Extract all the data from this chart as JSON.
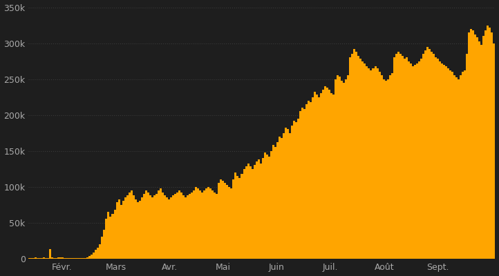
{
  "background_color": "#1e1e1e",
  "bar_color": "#FFA500",
  "text_color": "#aaaaaa",
  "grid_color": "#3a3a3a",
  "ylim": [
    0,
    350000
  ],
  "yticks": [
    0,
    50000,
    100000,
    150000,
    200000,
    250000,
    300000,
    350000
  ],
  "ytick_labels": [
    "0",
    "50k",
    "100k",
    "150k",
    "200k",
    "250k",
    "300k",
    "350k"
  ],
  "month_labels": [
    "Févr.",
    "Mars",
    "Avr.",
    "Mai",
    "Juin",
    "Juil.",
    "Août",
    "Sept."
  ],
  "values": [
    500,
    600,
    700,
    1000,
    800,
    700,
    600,
    1200,
    900,
    800,
    13000,
    1000,
    900,
    800,
    1500,
    1200,
    1000,
    900,
    800,
    700,
    600,
    500,
    400,
    300,
    400,
    500,
    600,
    700,
    1000,
    3000,
    5000,
    8000,
    12000,
    15000,
    20000,
    30000,
    40000,
    55000,
    65000,
    58000,
    62000,
    68000,
    78000,
    82000,
    75000,
    80000,
    85000,
    88000,
    92000,
    95000,
    88000,
    82000,
    78000,
    80000,
    85000,
    90000,
    95000,
    92000,
    88000,
    85000,
    88000,
    90000,
    95000,
    98000,
    92000,
    88000,
    85000,
    82000,
    85000,
    88000,
    90000,
    92000,
    95000,
    92000,
    88000,
    85000,
    88000,
    90000,
    92000,
    95000,
    100000,
    98000,
    95000,
    92000,
    95000,
    98000,
    100000,
    98000,
    95000,
    92000,
    90000,
    105000,
    110000,
    108000,
    105000,
    102000,
    100000,
    98000,
    110000,
    120000,
    115000,
    112000,
    118000,
    125000,
    128000,
    132000,
    128000,
    125000,
    130000,
    135000,
    138000,
    132000,
    140000,
    148000,
    145000,
    142000,
    150000,
    158000,
    155000,
    162000,
    170000,
    168000,
    175000,
    182000,
    180000,
    175000,
    185000,
    192000,
    190000,
    195000,
    205000,
    210000,
    208000,
    215000,
    220000,
    218000,
    225000,
    232000,
    228000,
    225000,
    230000,
    235000,
    240000,
    238000,
    235000,
    230000,
    228000,
    250000,
    255000,
    253000,
    248000,
    245000,
    250000,
    255000,
    280000,
    285000,
    292000,
    288000,
    282000,
    278000,
    275000,
    272000,
    268000,
    265000,
    262000,
    265000,
    268000,
    265000,
    260000,
    255000,
    250000,
    248000,
    250000,
    255000,
    258000,
    280000,
    285000,
    288000,
    285000,
    282000,
    278000,
    280000,
    275000,
    272000,
    268000,
    270000,
    272000,
    275000,
    278000,
    285000,
    290000,
    295000,
    292000,
    288000,
    285000,
    280000,
    278000,
    275000,
    272000,
    270000,
    268000,
    265000,
    262000,
    260000,
    255000,
    252000,
    250000,
    255000,
    260000,
    262000,
    285000,
    315000,
    320000,
    318000,
    312000,
    308000,
    302000,
    298000,
    310000,
    318000,
    325000,
    322000,
    315000,
    300000
  ],
  "month_x_fracs": [
    0.07,
    0.185,
    0.3,
    0.415,
    0.53,
    0.645,
    0.76,
    0.875
  ]
}
